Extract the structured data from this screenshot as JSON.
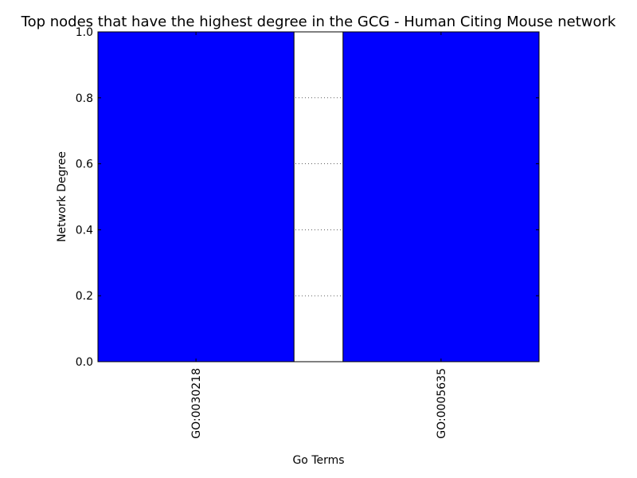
{
  "chart_data": {
    "type": "bar",
    "title": "Top nodes that have the highest degree in the GCG - Human Citing Mouse network",
    "xlabel": "Go Terms",
    "ylabel": "Network Degree",
    "categories": [
      "GO:0030218",
      "GO:0005635"
    ],
    "values": [
      1,
      1
    ],
    "ylim": [
      0,
      1.0
    ],
    "yticks": [
      "0.0",
      "0.2",
      "0.4",
      "0.6",
      "0.8",
      "1.0"
    ],
    "grid": true,
    "bar_color": "#0000ff",
    "edge_color": "#000000"
  }
}
